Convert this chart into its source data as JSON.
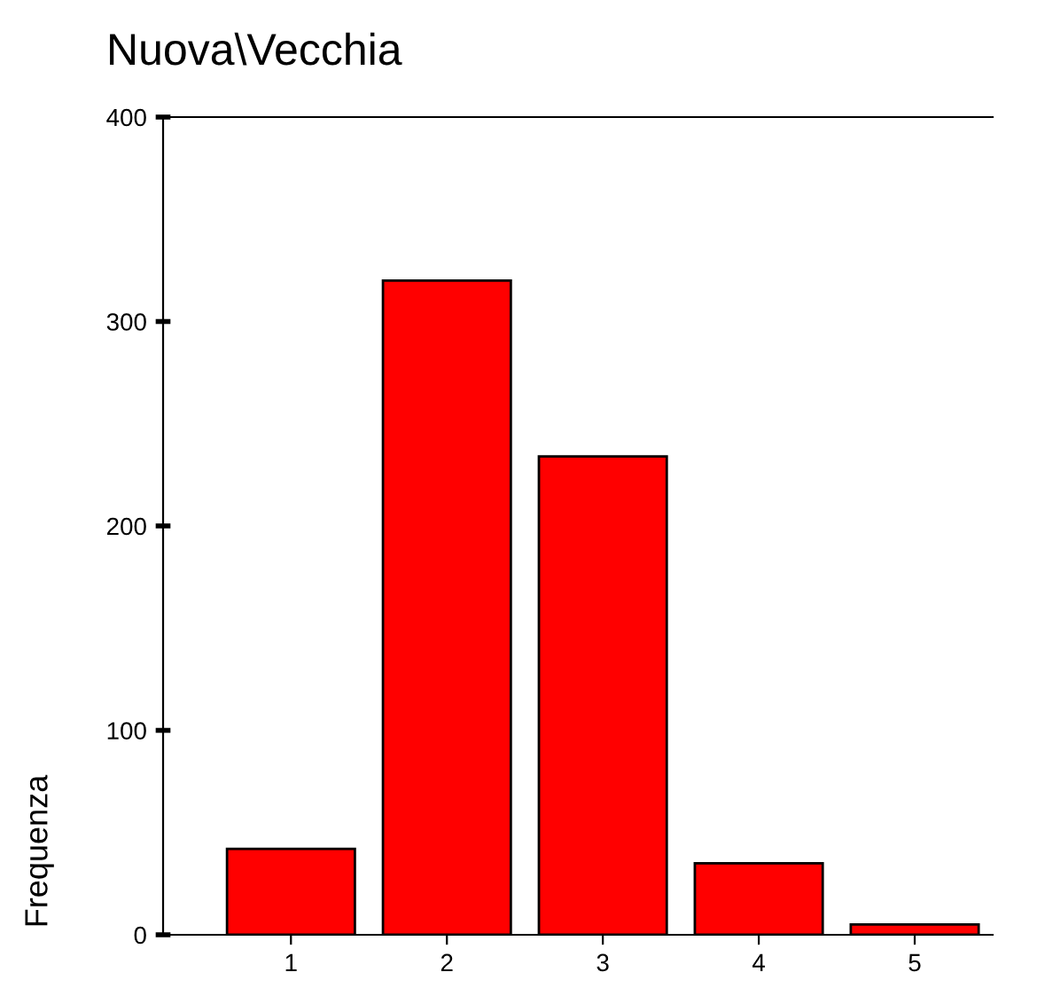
{
  "chart_data": {
    "type": "bar",
    "title": "Nuova\\Vecchia",
    "ylabel": "Frequenza",
    "categories": [
      "1",
      "2",
      "3",
      "4",
      "5"
    ],
    "values": [
      42,
      320,
      234,
      35,
      5
    ],
    "color": "#ff0000",
    "ylim": [
      0,
      400
    ],
    "yticks": [
      0,
      100,
      200,
      300,
      400
    ],
    "grid": false,
    "legend": false
  }
}
